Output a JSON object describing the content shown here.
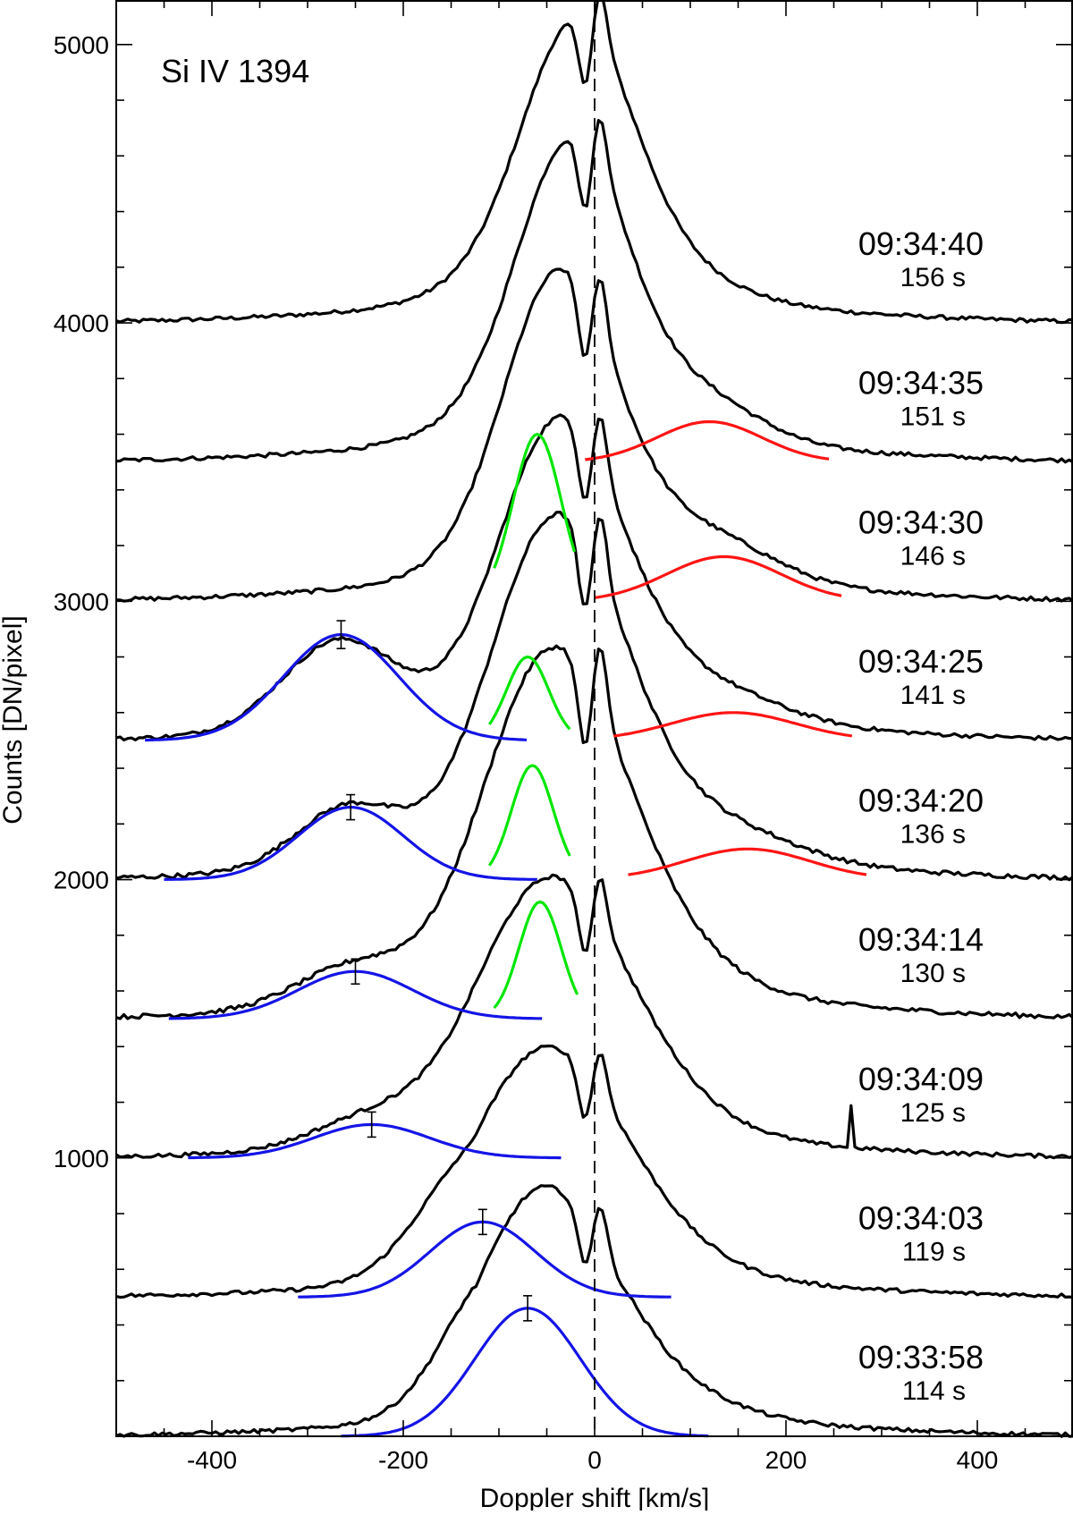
{
  "chart_data": {
    "type": "line",
    "title": "",
    "panel_label": "Si IV 1394",
    "xlabel": "Doppler shift [km/s]",
    "ylabel": "Counts [DN/pixel]",
    "xlim": [
      -500,
      500
    ],
    "ylim": [
      0,
      5160
    ],
    "xticks_major": [
      -400,
      -200,
      0,
      200,
      400
    ],
    "xticks_minor_step": 50,
    "yticks_major": [
      1000,
      2000,
      3000,
      4000,
      5000
    ],
    "yticks_minor_step": 200,
    "reference_line": {
      "x": 0,
      "style": "dashed"
    },
    "grid": false,
    "colors": {
      "observed": "#000000",
      "blue_component": "#1414e6",
      "green_component": "#00e600",
      "red_component": "#ff1414"
    },
    "spectra": [
      {
        "time": "09:34:40",
        "elapsed": "156 s",
        "offset": 4000,
        "peak": 5100,
        "core_shift": -20,
        "core_width": 55,
        "blue": null,
        "green": null,
        "red": null
      },
      {
        "time": "09:34:35",
        "elapsed": "151 s",
        "offset": 3500,
        "peak": 4680,
        "core_shift": -25,
        "core_width": 55,
        "blue": null,
        "green": null,
        "red": {
          "center": 120,
          "sigma": 55,
          "amp": 145,
          "x_range": [
            -10,
            245
          ]
        }
      },
      {
        "time": "09:34:30",
        "elapsed": "146 s",
        "offset": 3000,
        "peak": 4220,
        "core_shift": -40,
        "core_width": 55,
        "blue": null,
        "green": {
          "center": -60,
          "sigma": 25,
          "amp": 600,
          "x_range": [
            -105,
            -20
          ]
        },
        "red": {
          "center": 135,
          "sigma": 60,
          "amp": 160,
          "x_range": [
            0,
            260
          ]
        }
      },
      {
        "time": "09:34:25",
        "elapsed": "141 s",
        "offset": 2500,
        "peak": 3690,
        "core_shift": -40,
        "core_width": 60,
        "blue": {
          "center": -265,
          "sigma": 60,
          "amp": 380,
          "x_range": [
            -470,
            -70
          ],
          "error": 50
        },
        "green": {
          "center": -70,
          "sigma": 22,
          "amp": 300,
          "x_range": [
            -110,
            -25
          ]
        },
        "red": {
          "center": 145,
          "sigma": 65,
          "amp": 100,
          "x_range": [
            20,
            270
          ]
        }
      },
      {
        "time": "09:34:20",
        "elapsed": "136 s",
        "offset": 2000,
        "peak": 3350,
        "core_shift": -45,
        "core_width": 65,
        "blue": {
          "center": -255,
          "sigma": 55,
          "amp": 260,
          "x_range": [
            -450,
            -60
          ],
          "error": 45
        },
        "green": {
          "center": -65,
          "sigma": 22,
          "amp": 410,
          "x_range": [
            -110,
            -25
          ]
        },
        "red": {
          "center": 160,
          "sigma": 65,
          "amp": 110,
          "x_range": [
            35,
            285
          ]
        }
      },
      {
        "time": "09:34:14",
        "elapsed": "130 s",
        "offset": 1500,
        "peak": 2880,
        "core_shift": -50,
        "core_width": 70,
        "blue": {
          "center": -250,
          "sigma": 60,
          "amp": 170,
          "x_range": [
            -445,
            -55
          ],
          "error": 45
        },
        "green": {
          "center": -57,
          "sigma": 22,
          "amp": 420,
          "x_range": [
            -105,
            -17
          ]
        },
        "red": null
      },
      {
        "time": "09:34:09",
        "elapsed": "125 s",
        "offset": 1000,
        "peak": 2050,
        "core_shift": -55,
        "core_width": 75,
        "blue": {
          "center": -233,
          "sigma": 60,
          "amp": 120,
          "x_range": [
            -425,
            -35
          ],
          "error": 45
        },
        "green": null,
        "red": null
      },
      {
        "time": "09:34:03",
        "elapsed": "119 s",
        "offset": 500,
        "peak": 1440,
        "core_shift": -60,
        "core_width": 75,
        "blue": {
          "center": -117,
          "sigma": 55,
          "amp": 270,
          "x_range": [
            -310,
            80
          ],
          "error": 45
        },
        "green": null,
        "red": null
      },
      {
        "time": "09:33:58",
        "elapsed": "114 s",
        "offset": 0,
        "peak": 940,
        "core_shift": -60,
        "core_width": 65,
        "blue": {
          "center": -70,
          "sigma": 55,
          "amp": 460,
          "x_range": [
            -265,
            120
          ],
          "error": 45
        },
        "green": null,
        "red": null
      }
    ],
    "spike": {
      "spectrum_time": "09:34:09",
      "x": 268,
      "height": 150
    }
  }
}
